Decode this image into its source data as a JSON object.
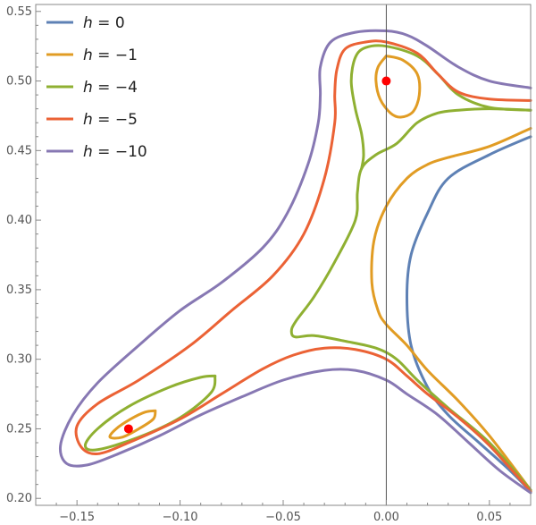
{
  "chart_data": {
    "type": "contour",
    "title": "",
    "xlabel": "",
    "ylabel": "",
    "xlim": [
      -0.17,
      0.07
    ],
    "ylim": [
      0.195,
      0.555
    ],
    "xticks": [
      -0.15,
      -0.1,
      -0.05,
      0.0,
      0.05
    ],
    "xtick_labels": [
      "−0.15",
      "−0.10",
      "−0.05",
      "0.00",
      "0.05"
    ],
    "yticks": [
      0.2,
      0.25,
      0.3,
      0.35,
      0.4,
      0.45,
      0.5,
      0.55
    ],
    "ytick_labels": [
      "0.20",
      "0.25",
      "0.30",
      "0.35",
      "0.40",
      "0.45",
      "0.50",
      "0.55"
    ],
    "vertical_reference_line": 0.0,
    "legend": {
      "placement": "top-left"
    },
    "series": [
      {
        "name": "h = 0",
        "var": "h",
        "value_label": " = 0",
        "color": "#5E81B5",
        "paths": [
          [
            [
              0.07,
              0.46
            ],
            [
              0.05,
              0.447
            ],
            [
              0.03,
              0.43
            ],
            [
              0.02,
              0.405
            ],
            [
              0.012,
              0.375
            ],
            [
              0.01,
              0.345
            ],
            [
              0.012,
              0.31
            ],
            [
              0.02,
              0.28
            ],
            [
              0.03,
              0.26
            ],
            [
              0.045,
              0.24
            ],
            [
              0.06,
              0.22
            ],
            [
              0.07,
              0.205
            ]
          ]
        ]
      },
      {
        "name": "h = −1",
        "var": "h",
        "value_label": " = −1",
        "color": "#E19C24",
        "paths": [
          [
            [
              0.0,
              0.518
            ],
            [
              0.008,
              0.515
            ],
            [
              0.015,
              0.505
            ],
            [
              0.016,
              0.49
            ],
            [
              0.013,
              0.478
            ],
            [
              0.007,
              0.474
            ],
            [
              0.002,
              0.477
            ],
            [
              -0.003,
              0.487
            ],
            [
              -0.005,
              0.5
            ],
            [
              -0.004,
              0.51
            ],
            [
              0.0,
              0.518
            ]
          ],
          [
            [
              0.07,
              0.466
            ],
            [
              0.05,
              0.453
            ],
            [
              0.03,
              0.445
            ],
            [
              0.02,
              0.44
            ],
            [
              0.01,
              0.43
            ],
            [
              0.0,
              0.41
            ],
            [
              -0.006,
              0.385
            ],
            [
              -0.007,
              0.355
            ],
            [
              -0.004,
              0.335
            ],
            [
              0.0,
              0.325
            ],
            [
              0.01,
              0.31
            ],
            [
              0.02,
              0.292
            ],
            [
              0.035,
              0.27
            ],
            [
              0.05,
              0.245
            ],
            [
              0.07,
              0.206
            ]
          ],
          [
            [
              -0.112,
              0.263
            ],
            [
              -0.117,
              0.262
            ],
            [
              -0.124,
              0.257
            ],
            [
              -0.131,
              0.25
            ],
            [
              -0.134,
              0.244
            ],
            [
              -0.128,
              0.244
            ],
            [
              -0.12,
              0.25
            ],
            [
              -0.113,
              0.257
            ],
            [
              -0.112,
              0.263
            ]
          ]
        ]
      },
      {
        "name": "h = −4",
        "var": "h",
        "value_label": " = −4",
        "color": "#8FB032",
        "paths": [
          [
            [
              0.07,
              0.479
            ],
            [
              0.05,
              0.48
            ],
            [
              0.035,
              0.479
            ],
            [
              0.025,
              0.477
            ],
            [
              0.015,
              0.47
            ],
            [
              0.005,
              0.455
            ],
            [
              -0.005,
              0.447
            ],
            [
              -0.012,
              0.437
            ],
            [
              -0.014,
              0.42
            ],
            [
              -0.015,
              0.4
            ],
            [
              -0.025,
              0.37
            ],
            [
              -0.035,
              0.345
            ],
            [
              -0.044,
              0.327
            ],
            [
              -0.046,
              0.32
            ],
            [
              -0.044,
              0.316
            ],
            [
              -0.035,
              0.317
            ],
            [
              -0.02,
              0.313
            ],
            [
              -0.005,
              0.308
            ],
            [
              0.005,
              0.3
            ],
            [
              0.015,
              0.285
            ],
            [
              0.03,
              0.265
            ],
            [
              0.05,
              0.24
            ],
            [
              0.07,
              0.206
            ]
          ],
          [
            [
              0.07,
              0.479
            ],
            [
              0.05,
              0.481
            ],
            [
              0.035,
              0.49
            ],
            [
              0.025,
              0.505
            ],
            [
              0.015,
              0.518
            ],
            [
              0.0,
              0.525
            ],
            [
              -0.01,
              0.524
            ],
            [
              -0.015,
              0.517
            ],
            [
              -0.017,
              0.5
            ],
            [
              -0.015,
              0.48
            ],
            [
              -0.012,
              0.462
            ],
            [
              -0.011,
              0.447
            ],
            [
              -0.012,
              0.437
            ]
          ],
          [
            [
              -0.083,
              0.288
            ],
            [
              -0.09,
              0.287
            ],
            [
              -0.105,
              0.28
            ],
            [
              -0.125,
              0.266
            ],
            [
              -0.14,
              0.25
            ],
            [
              -0.146,
              0.238
            ],
            [
              -0.14,
              0.235
            ],
            [
              -0.12,
              0.244
            ],
            [
              -0.1,
              0.258
            ],
            [
              -0.085,
              0.276
            ],
            [
              -0.083,
              0.288
            ]
          ]
        ]
      },
      {
        "name": "h = −5",
        "var": "h",
        "value_label": " = −5",
        "color": "#EB6235",
        "paths": [
          [
            [
              0.07,
              0.486
            ],
            [
              0.05,
              0.487
            ],
            [
              0.035,
              0.492
            ],
            [
              0.025,
              0.505
            ],
            [
              0.015,
              0.52
            ],
            [
              0.0,
              0.528
            ],
            [
              -0.01,
              0.528
            ],
            [
              -0.02,
              0.523
            ],
            [
              -0.024,
              0.508
            ],
            [
              -0.025,
              0.49
            ],
            [
              -0.025,
              0.47
            ],
            [
              -0.03,
              0.43
            ],
            [
              -0.04,
              0.39
            ],
            [
              -0.055,
              0.36
            ],
            [
              -0.075,
              0.335
            ],
            [
              -0.095,
              0.31
            ],
            [
              -0.12,
              0.285
            ],
            [
              -0.14,
              0.268
            ],
            [
              -0.15,
              0.252
            ],
            [
              -0.148,
              0.237
            ],
            [
              -0.14,
              0.232
            ],
            [
              -0.125,
              0.24
            ],
            [
              -0.1,
              0.257
            ],
            [
              -0.08,
              0.275
            ],
            [
              -0.06,
              0.293
            ],
            [
              -0.045,
              0.303
            ],
            [
              -0.03,
              0.308
            ],
            [
              -0.015,
              0.307
            ],
            [
              0.0,
              0.3
            ],
            [
              0.01,
              0.288
            ],
            [
              0.02,
              0.275
            ],
            [
              0.035,
              0.258
            ],
            [
              0.05,
              0.238
            ],
            [
              0.07,
              0.205
            ]
          ]
        ]
      },
      {
        "name": "h = −10",
        "var": "h",
        "value_label": " = −10",
        "color": "#8778B3",
        "paths": [
          [
            [
              0.07,
              0.495
            ],
            [
              0.05,
              0.5
            ],
            [
              0.035,
              0.51
            ],
            [
              0.02,
              0.525
            ],
            [
              0.01,
              0.533
            ],
            [
              0.0,
              0.536
            ],
            [
              -0.015,
              0.535
            ],
            [
              -0.027,
              0.528
            ],
            [
              -0.032,
              0.51
            ],
            [
              -0.032,
              0.49
            ],
            [
              -0.033,
              0.47
            ],
            [
              -0.038,
              0.44
            ],
            [
              -0.048,
              0.405
            ],
            [
              -0.06,
              0.38
            ],
            [
              -0.08,
              0.355
            ],
            [
              -0.1,
              0.335
            ],
            [
              -0.12,
              0.31
            ],
            [
              -0.14,
              0.283
            ],
            [
              -0.152,
              0.26
            ],
            [
              -0.158,
              0.238
            ],
            [
              -0.155,
              0.225
            ],
            [
              -0.145,
              0.224
            ],
            [
              -0.13,
              0.232
            ],
            [
              -0.11,
              0.245
            ],
            [
              -0.09,
              0.26
            ],
            [
              -0.07,
              0.273
            ],
            [
              -0.05,
              0.285
            ],
            [
              -0.03,
              0.292
            ],
            [
              -0.015,
              0.292
            ],
            [
              0.0,
              0.285
            ],
            [
              0.01,
              0.275
            ],
            [
              0.025,
              0.26
            ],
            [
              0.04,
              0.24
            ],
            [
              0.055,
              0.22
            ],
            [
              0.07,
              0.204
            ]
          ]
        ]
      }
    ],
    "points": [
      {
        "x": 0.0,
        "y": 0.5,
        "color": "#FF0000"
      },
      {
        "x": -0.125,
        "y": 0.25,
        "color": "#FF0000"
      }
    ]
  }
}
